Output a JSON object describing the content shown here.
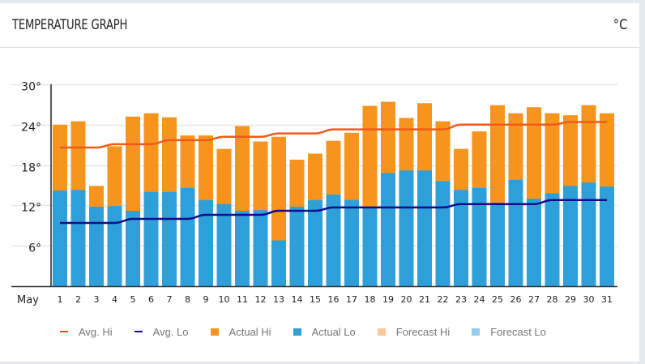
{
  "header": {
    "title": "TEMPERATURE GRAPH",
    "unit": "°C"
  },
  "colors": {
    "avg_hi": "#f05a19",
    "avg_lo": "#0c0c8c",
    "actual_hi": "#f7941e",
    "actual_lo": "#2e9fd9",
    "forecast_hi": "#fcc99a",
    "forecast_lo": "#96cbe9",
    "grid": "#e8e8e8",
    "axis": "#222222"
  },
  "chart_data": {
    "type": "bar",
    "title": "TEMPERATURE GRAPH",
    "xlabel": "May",
    "ylabel": "°C",
    "ylim": [
      0,
      30
    ],
    "yticks": [
      6,
      12,
      18,
      24,
      30
    ],
    "ytick_labels": [
      "6°",
      "12°",
      "18°",
      "24°",
      "30°"
    ],
    "grid": true,
    "legend_position": "bottom",
    "categories": [
      "1",
      "2",
      "3",
      "4",
      "5",
      "6",
      "7",
      "8",
      "9",
      "10",
      "11",
      "12",
      "13",
      "14",
      "15",
      "16",
      "17",
      "18",
      "19",
      "20",
      "21",
      "22",
      "23",
      "24",
      "25",
      "26",
      "27",
      "28",
      "29",
      "30",
      "31"
    ],
    "series": [
      {
        "name": "Actual Hi",
        "kind": "bar",
        "values": [
          24.0,
          24.5,
          14.9,
          20.8,
          25.2,
          25.7,
          25.1,
          22.4,
          22.4,
          20.4,
          23.8,
          21.5,
          22.2,
          18.8,
          19.7,
          21.6,
          22.8,
          26.8,
          27.4,
          25.0,
          27.2,
          24.5,
          20.4,
          23.0,
          26.9,
          25.7,
          26.6,
          25.7,
          25.4,
          26.9,
          25.7
        ]
      },
      {
        "name": "Actual Lo",
        "kind": "bar",
        "values": [
          14.2,
          14.3,
          11.8,
          11.9,
          11.2,
          14.0,
          14.0,
          14.6,
          12.8,
          12.2,
          11.2,
          11.3,
          6.8,
          11.8,
          12.8,
          13.6,
          12.8,
          11.8,
          16.8,
          17.2,
          17.2,
          15.6,
          14.3,
          14.6,
          12.4,
          15.8,
          13.0,
          13.8,
          14.9,
          15.4,
          14.8
        ]
      },
      {
        "name": "Avg. Hi",
        "kind": "line",
        "values": [
          20.6,
          20.6,
          20.6,
          21.1,
          21.1,
          21.1,
          21.7,
          21.7,
          21.7,
          22.2,
          22.2,
          22.2,
          22.7,
          22.7,
          22.7,
          23.3,
          23.3,
          23.3,
          23.3,
          23.3,
          23.3,
          23.3,
          24.0,
          24.0,
          24.0,
          24.0,
          24.0,
          24.0,
          24.4,
          24.4,
          24.4
        ]
      },
      {
        "name": "Avg. Lo",
        "kind": "line",
        "values": [
          9.4,
          9.4,
          9.4,
          9.4,
          10.0,
          10.0,
          10.0,
          10.0,
          10.6,
          10.6,
          10.6,
          10.6,
          11.2,
          11.2,
          11.2,
          11.7,
          11.7,
          11.7,
          11.7,
          11.7,
          11.7,
          11.7,
          12.2,
          12.2,
          12.2,
          12.2,
          12.2,
          12.8,
          12.8,
          12.8,
          12.8
        ]
      }
    ],
    "legend": [
      {
        "label": "Avg. Hi",
        "type": "line",
        "color_key": "avg_hi"
      },
      {
        "label": "Avg. Lo",
        "type": "line",
        "color_key": "avg_lo"
      },
      {
        "label": "Actual Hi",
        "type": "box",
        "color_key": "actual_hi"
      },
      {
        "label": "Actual Lo",
        "type": "box",
        "color_key": "actual_lo"
      },
      {
        "label": "Forecast Hi",
        "type": "box",
        "color_key": "forecast_hi"
      },
      {
        "label": "Forecast Lo",
        "type": "box",
        "color_key": "forecast_lo"
      }
    ]
  }
}
